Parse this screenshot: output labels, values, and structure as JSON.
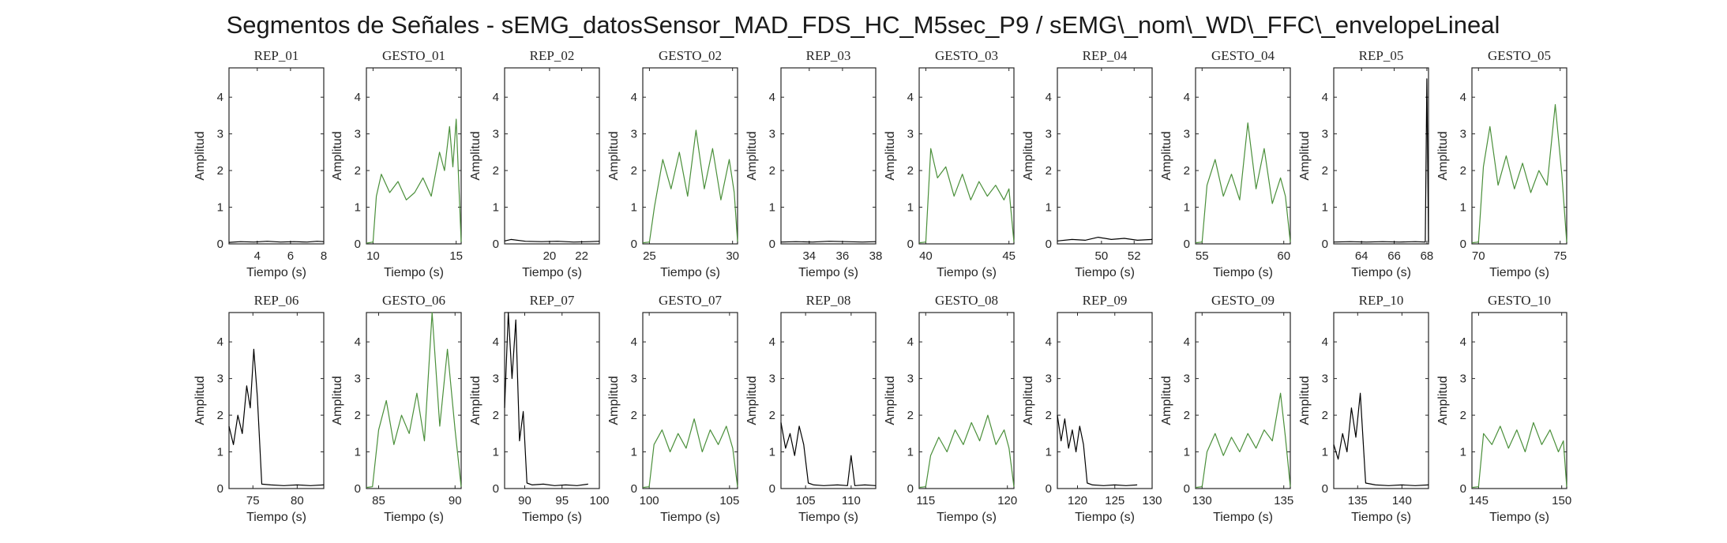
{
  "figure_title": "Segmentos de Señales - sEMG_datosSensor_MAD_FDS_HC_M5sec_P9 / sEMG\\_nom\\_WD\\_FFC\\_envelopeLineal",
  "colors": {
    "rep": "#000000",
    "gesto": "#4a8f3a"
  },
  "chart_data": [
    {
      "type": "line",
      "title": "REP_01",
      "series_kind": "rep",
      "xlabel": "Tiempo (s)",
      "ylabel": "Amplitud",
      "xlim": [
        2.3,
        8
      ],
      "ylim": [
        0,
        4.8
      ],
      "xticks": [
        4,
        6,
        8
      ],
      "yticks": [
        0,
        1,
        2,
        3,
        4
      ],
      "x": [
        2.3,
        3.0,
        3.8,
        4.6,
        5.4,
        6.2,
        7.0,
        7.6,
        8.0
      ],
      "y": [
        0.04,
        0.06,
        0.05,
        0.07,
        0.05,
        0.06,
        0.05,
        0.07,
        0.06
      ]
    },
    {
      "type": "line",
      "title": "GESTO_01",
      "series_kind": "gesto",
      "xlabel": "Tiempo (s)",
      "ylabel": "Amplitud",
      "xlim": [
        9.6,
        15.3
      ],
      "ylim": [
        0,
        4.8
      ],
      "xticks": [
        10,
        15
      ],
      "yticks": [
        0,
        1,
        2,
        3,
        4
      ],
      "x": [
        9.6,
        10.0,
        10.2,
        10.5,
        11.0,
        11.5,
        12.0,
        12.5,
        13.0,
        13.5,
        14.0,
        14.3,
        14.6,
        14.8,
        15.0,
        15.3
      ],
      "y": [
        0.02,
        0.05,
        1.3,
        1.9,
        1.4,
        1.7,
        1.2,
        1.4,
        1.8,
        1.3,
        2.5,
        2.0,
        3.2,
        2.1,
        3.4,
        0.05
      ]
    },
    {
      "type": "line",
      "title": "REP_02",
      "series_kind": "rep",
      "xlabel": "Tiempo (s)",
      "ylabel": "Amplitud",
      "xlim": [
        17.2,
        23.1
      ],
      "ylim": [
        0,
        4.8
      ],
      "xticks": [
        20,
        22
      ],
      "yticks": [
        0,
        1,
        2,
        3,
        4
      ],
      "x": [
        17.2,
        17.6,
        18.5,
        19.5,
        20.5,
        21.5,
        22.5,
        23.1
      ],
      "y": [
        0.08,
        0.12,
        0.07,
        0.06,
        0.07,
        0.05,
        0.06,
        0.07
      ]
    },
    {
      "type": "line",
      "title": "GESTO_02",
      "series_kind": "gesto",
      "xlabel": "Tiempo (s)",
      "ylabel": "Amplitud",
      "xlim": [
        24.6,
        30.3
      ],
      "ylim": [
        0,
        4.8
      ],
      "xticks": [
        25,
        30
      ],
      "yticks": [
        0,
        1,
        2,
        3,
        4
      ],
      "x": [
        24.6,
        25.0,
        25.3,
        25.8,
        26.3,
        26.8,
        27.3,
        27.8,
        28.3,
        28.8,
        29.3,
        29.8,
        30.1,
        30.3
      ],
      "y": [
        0.03,
        0.05,
        1.0,
        2.3,
        1.5,
        2.5,
        1.3,
        3.1,
        1.5,
        2.6,
        1.2,
        2.3,
        1.4,
        0.06
      ]
    },
    {
      "type": "line",
      "title": "REP_03",
      "series_kind": "rep",
      "xlabel": "Tiempo (s)",
      "ylabel": "Amplitud",
      "xlim": [
        32.3,
        38
      ],
      "ylim": [
        0,
        4.8
      ],
      "xticks": [
        34,
        36,
        38
      ],
      "yticks": [
        0,
        1,
        2,
        3,
        4
      ],
      "x": [
        32.3,
        33.2,
        34.2,
        35.2,
        36.2,
        37.2,
        38.0
      ],
      "y": [
        0.05,
        0.06,
        0.05,
        0.07,
        0.06,
        0.05,
        0.06
      ]
    },
    {
      "type": "line",
      "title": "GESTO_03",
      "series_kind": "gesto",
      "xlabel": "Tiempo (s)",
      "ylabel": "Amplitud",
      "xlim": [
        39.6,
        45.3
      ],
      "ylim": [
        0,
        4.8
      ],
      "xticks": [
        40,
        45
      ],
      "yticks": [
        0,
        1,
        2,
        3,
        4
      ],
      "x": [
        39.6,
        40.0,
        40.3,
        40.7,
        41.2,
        41.7,
        42.2,
        42.7,
        43.2,
        43.7,
        44.2,
        44.7,
        45.0,
        45.3
      ],
      "y": [
        0.03,
        0.05,
        2.6,
        1.8,
        2.1,
        1.3,
        1.9,
        1.2,
        1.7,
        1.3,
        1.6,
        1.2,
        1.5,
        0.05
      ]
    },
    {
      "type": "line",
      "title": "REP_04",
      "series_kind": "rep",
      "xlabel": "Tiempo (s)",
      "ylabel": "Amplitud",
      "xlim": [
        47.3,
        53.1
      ],
      "ylim": [
        0,
        4.8
      ],
      "xticks": [
        50,
        52
      ],
      "yticks": [
        0,
        1,
        2,
        3,
        4
      ],
      "x": [
        47.3,
        48.2,
        49.0,
        49.8,
        50.6,
        51.4,
        52.2,
        53.1
      ],
      "y": [
        0.08,
        0.12,
        0.1,
        0.18,
        0.12,
        0.15,
        0.1,
        0.12
      ]
    },
    {
      "type": "line",
      "title": "GESTO_04",
      "series_kind": "gesto",
      "xlabel": "Tiempo (s)",
      "ylabel": "Amplitud",
      "xlim": [
        54.6,
        60.4
      ],
      "ylim": [
        0,
        4.8
      ],
      "xticks": [
        55,
        60
      ],
      "yticks": [
        0,
        1,
        2,
        3,
        4
      ],
      "x": [
        54.6,
        55.0,
        55.3,
        55.8,
        56.3,
        56.8,
        57.3,
        57.8,
        58.3,
        58.8,
        59.3,
        59.8,
        60.1,
        60.4
      ],
      "y": [
        0.03,
        0.05,
        1.6,
        2.3,
        1.3,
        1.9,
        1.2,
        3.3,
        1.5,
        2.6,
        1.1,
        1.8,
        1.3,
        0.05
      ]
    },
    {
      "type": "line",
      "title": "REP_05",
      "series_kind": "rep",
      "xlabel": "Tiempo (s)",
      "ylabel": "Amplitud",
      "xlim": [
        62.3,
        68.1
      ],
      "ylim": [
        0,
        4.8
      ],
      "xticks": [
        64,
        66,
        68
      ],
      "yticks": [
        0,
        1,
        2,
        3,
        4
      ],
      "x": [
        62.3,
        63.3,
        64.3,
        65.3,
        66.3,
        67.3,
        67.9,
        68.0,
        68.1
      ],
      "y": [
        0.05,
        0.06,
        0.05,
        0.06,
        0.05,
        0.06,
        0.05,
        4.5,
        0.05
      ]
    },
    {
      "type": "line",
      "title": "GESTO_05",
      "series_kind": "gesto",
      "xlabel": "Tiempo (s)",
      "ylabel": "Amplitud",
      "xlim": [
        69.6,
        75.4
      ],
      "ylim": [
        0,
        4.8
      ],
      "xticks": [
        70,
        75
      ],
      "yticks": [
        0,
        1,
        2,
        3,
        4
      ],
      "x": [
        69.6,
        70.0,
        70.3,
        70.7,
        71.2,
        71.7,
        72.2,
        72.7,
        73.2,
        73.7,
        74.2,
        74.7,
        75.1,
        75.4
      ],
      "y": [
        0.03,
        0.05,
        2.1,
        3.2,
        1.6,
        2.4,
        1.5,
        2.2,
        1.4,
        2.0,
        1.6,
        3.8,
        1.9,
        0.05
      ]
    },
    {
      "type": "line",
      "title": "REP_06",
      "series_kind": "rep",
      "xlabel": "Tiempo (s)",
      "ylabel": "Amplitud",
      "xlim": [
        72.3,
        83
      ],
      "ylim": [
        0,
        4.8
      ],
      "xticks": [
        75,
        80
      ],
      "yticks": [
        0,
        1,
        2,
        3,
        4
      ],
      "x": [
        72.3,
        72.8,
        73.3,
        73.8,
        74.3,
        74.7,
        75.1,
        75.5,
        76.0,
        77.0,
        78.5,
        80.0,
        81.5,
        83.0
      ],
      "y": [
        1.7,
        1.2,
        2.0,
        1.5,
        2.8,
        2.2,
        3.8,
        2.5,
        0.12,
        0.1,
        0.08,
        0.1,
        0.08,
        0.1
      ]
    },
    {
      "type": "line",
      "title": "GESTO_06",
      "series_kind": "gesto",
      "xlabel": "Tiempo (s)",
      "ylabel": "Amplitud",
      "xlim": [
        84.2,
        90.4
      ],
      "ylim": [
        0,
        4.8
      ],
      "xticks": [
        85,
        90
      ],
      "yticks": [
        0,
        1,
        2,
        3,
        4
      ],
      "x": [
        84.2,
        84.6,
        85.0,
        85.5,
        86.0,
        86.5,
        87.0,
        87.5,
        88.0,
        88.5,
        89.0,
        89.5,
        90.0,
        90.4
      ],
      "y": [
        0.03,
        0.05,
        1.6,
        2.4,
        1.2,
        2.0,
        1.5,
        2.6,
        1.3,
        4.8,
        1.7,
        3.8,
        1.6,
        0.05
      ]
    },
    {
      "type": "line",
      "title": "REP_07",
      "series_kind": "rep",
      "xlabel": "Tiempo (s)",
      "ylabel": "Amplitud",
      "xlim": [
        87.3,
        100
      ],
      "ylim": [
        0,
        4.8
      ],
      "xticks": [
        90,
        95,
        100
      ],
      "yticks": [
        0,
        1,
        2,
        3,
        4
      ],
      "x": [
        87.3,
        87.8,
        88.3,
        88.8,
        89.3,
        89.8,
        90.3,
        91.0,
        92.5,
        94.0,
        95.5,
        97.0,
        98.5
      ],
      "y": [
        2.2,
        4.8,
        3.0,
        4.6,
        1.3,
        2.1,
        0.15,
        0.1,
        0.12,
        0.08,
        0.1,
        0.08,
        0.12
      ]
    },
    {
      "type": "line",
      "title": "GESTO_07",
      "series_kind": "gesto",
      "xlabel": "Tiempo (s)",
      "ylabel": "Amplitud",
      "xlim": [
        99.6,
        105.5
      ],
      "ylim": [
        0,
        4.8
      ],
      "xticks": [
        100,
        105
      ],
      "yticks": [
        0,
        1,
        2,
        3,
        4
      ],
      "x": [
        99.6,
        100.0,
        100.3,
        100.8,
        101.3,
        101.8,
        102.3,
        102.8,
        103.3,
        103.8,
        104.3,
        104.8,
        105.2,
        105.5
      ],
      "y": [
        0.03,
        0.05,
        1.2,
        1.6,
        1.0,
        1.5,
        1.1,
        1.9,
        1.0,
        1.6,
        1.2,
        1.7,
        1.1,
        0.05
      ]
    },
    {
      "type": "line",
      "title": "REP_08",
      "series_kind": "rep",
      "xlabel": "Tiempo (s)",
      "ylabel": "Amplitud",
      "xlim": [
        102.3,
        112.7
      ],
      "ylim": [
        0,
        4.8
      ],
      "xticks": [
        105,
        110
      ],
      "yticks": [
        0,
        1,
        2,
        3,
        4
      ],
      "x": [
        102.3,
        102.8,
        103.3,
        103.8,
        104.3,
        104.8,
        105.3,
        105.9,
        107.0,
        108.5,
        109.6,
        110.0,
        110.4,
        111.5,
        112.7
      ],
      "y": [
        1.8,
        1.1,
        1.5,
        0.9,
        1.7,
        1.2,
        0.15,
        0.1,
        0.08,
        0.1,
        0.08,
        0.9,
        0.08,
        0.1,
        0.08
      ]
    },
    {
      "type": "line",
      "title": "GESTO_08",
      "series_kind": "gesto",
      "xlabel": "Tiempo (s)",
      "ylabel": "Amplitud",
      "xlim": [
        114.6,
        120.4
      ],
      "ylim": [
        0,
        4.8
      ],
      "xticks": [
        115,
        120
      ],
      "yticks": [
        0,
        1,
        2,
        3,
        4
      ],
      "x": [
        114.6,
        115.0,
        115.3,
        115.8,
        116.3,
        116.8,
        117.3,
        117.8,
        118.3,
        118.8,
        119.3,
        119.8,
        120.1,
        120.4
      ],
      "y": [
        0.03,
        0.05,
        0.9,
        1.4,
        1.0,
        1.6,
        1.2,
        1.8,
        1.3,
        2.0,
        1.2,
        1.6,
        1.1,
        0.05
      ]
    },
    {
      "type": "line",
      "title": "REP_09",
      "series_kind": "rep",
      "xlabel": "Tiempo (s)",
      "ylabel": "Amplitud",
      "xlim": [
        117.3,
        130
      ],
      "ylim": [
        0,
        4.8
      ],
      "xticks": [
        120,
        125,
        130
      ],
      "yticks": [
        0,
        1,
        2,
        3,
        4
      ],
      "x": [
        117.3,
        117.8,
        118.3,
        118.8,
        119.3,
        119.8,
        120.3,
        120.8,
        121.3,
        122.0,
        123.5,
        125.0,
        126.5,
        128.0
      ],
      "y": [
        2.0,
        1.3,
        1.9,
        1.1,
        1.6,
        1.0,
        1.7,
        1.2,
        0.15,
        0.1,
        0.08,
        0.1,
        0.08,
        0.1
      ]
    },
    {
      "type": "line",
      "title": "GESTO_09",
      "series_kind": "gesto",
      "xlabel": "Tiempo (s)",
      "ylabel": "Amplitud",
      "xlim": [
        129.6,
        135.4
      ],
      "ylim": [
        0,
        4.8
      ],
      "xticks": [
        130,
        135
      ],
      "yticks": [
        0,
        1,
        2,
        3,
        4
      ],
      "x": [
        129.6,
        130.0,
        130.3,
        130.8,
        131.3,
        131.8,
        132.3,
        132.8,
        133.3,
        133.8,
        134.3,
        134.8,
        135.1,
        135.4
      ],
      "y": [
        0.03,
        0.05,
        1.0,
        1.5,
        0.9,
        1.4,
        1.0,
        1.5,
        1.1,
        1.6,
        1.3,
        2.6,
        1.4,
        0.05
      ]
    },
    {
      "type": "line",
      "title": "REP_10",
      "series_kind": "rep",
      "xlabel": "Tiempo (s)",
      "ylabel": "Amplitud",
      "xlim": [
        132.3,
        143
      ],
      "ylim": [
        0,
        4.8
      ],
      "xticks": [
        135,
        140
      ],
      "yticks": [
        0,
        1,
        2,
        3,
        4
      ],
      "x": [
        132.3,
        132.8,
        133.3,
        133.8,
        134.3,
        134.8,
        135.3,
        135.9,
        137.0,
        138.5,
        140.0,
        141.5,
        143.0
      ],
      "y": [
        1.2,
        0.8,
        1.5,
        1.0,
        2.2,
        1.4,
        2.6,
        0.15,
        0.1,
        0.08,
        0.1,
        0.08,
        0.1
      ]
    },
    {
      "type": "line",
      "title": "GESTO_10",
      "series_kind": "gesto",
      "xlabel": "Tiempo (s)",
      "ylabel": "Amplitud",
      "xlim": [
        144.6,
        150.3
      ],
      "ylim": [
        0,
        4.8
      ],
      "xticks": [
        145,
        150
      ],
      "yticks": [
        0,
        1,
        2,
        3,
        4
      ],
      "x": [
        144.6,
        145.0,
        145.3,
        145.8,
        146.3,
        146.8,
        147.3,
        147.8,
        148.3,
        148.8,
        149.3,
        149.8,
        150.1,
        150.3
      ],
      "y": [
        0.03,
        0.05,
        1.5,
        1.2,
        1.7,
        1.1,
        1.6,
        1.0,
        1.8,
        1.2,
        1.6,
        1.0,
        1.3,
        0.05
      ]
    }
  ]
}
